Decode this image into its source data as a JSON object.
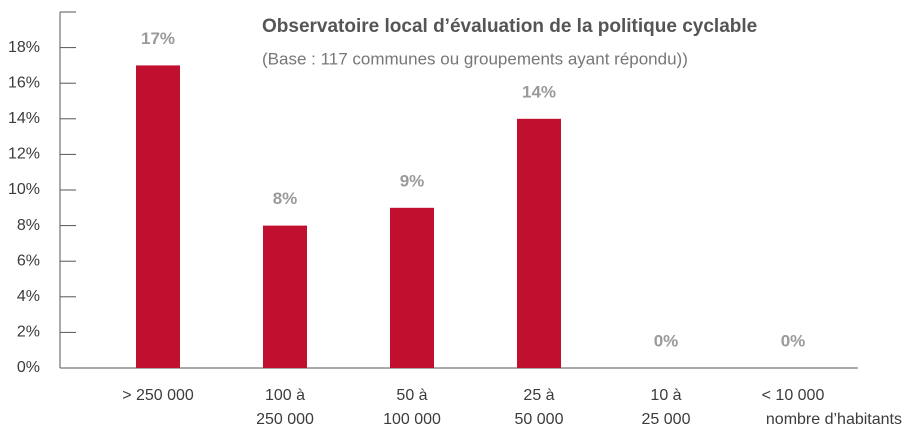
{
  "chart_data": {
    "type": "bar",
    "title": "Observatoire local d’évaluation de la politique cyclable",
    "subtitle": "(Base : 117 communes ou groupements ayant répondu))",
    "x_label": "nombre d’habitants",
    "categories": [
      [
        "> 250 000"
      ],
      [
        "100 à",
        "250 000"
      ],
      [
        "50 à",
        "100 000"
      ],
      [
        "25 à",
        "50 000"
      ],
      [
        "10 à",
        "25 000"
      ],
      [
        "< 10 000"
      ]
    ],
    "values": [
      17,
      8,
      9,
      14,
      0,
      0
    ],
    "value_labels": [
      "17%",
      "8%",
      "9%",
      "14%",
      "0%",
      "0%"
    ],
    "color": "#c1102f",
    "ylim": [
      0,
      20
    ],
    "yticks": [
      {
        "value": 0,
        "label": "0%"
      },
      {
        "value": 2,
        "label": "2%"
      },
      {
        "value": 4,
        "label": "4%"
      },
      {
        "value": 6,
        "label": "6%"
      },
      {
        "value": 8,
        "label": "8%"
      },
      {
        "value": 10,
        "label": "10%"
      },
      {
        "value": 12,
        "label": "12%"
      },
      {
        "value": 14,
        "label": "14%"
      },
      {
        "value": 16,
        "label": "16%"
      },
      {
        "value": 18,
        "label": "18%"
      }
    ]
  }
}
